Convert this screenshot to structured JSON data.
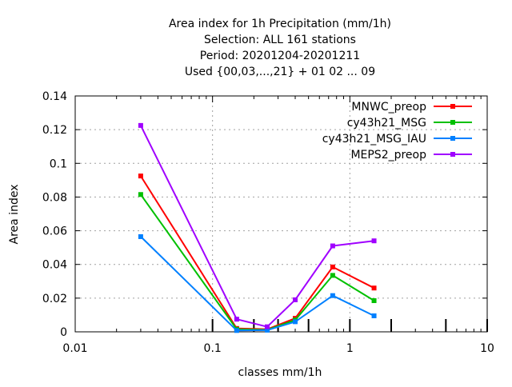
{
  "chart_data": {
    "type": "line",
    "title_lines": [
      "Area index  for 1h Precipitation (mm/1h)",
      "Selection: ALL    161 stations",
      "Period: 20201204-20201211",
      "Used {00,03,...,21} + 01 02 ... 09"
    ],
    "xlabel": "classes mm/1h",
    "ylabel": "Area index",
    "x_scale": "log",
    "xlim": [
      0.01,
      10
    ],
    "ylim": [
      0,
      0.14
    ],
    "x_ticks": [
      {
        "value": 0.01,
        "label": "0.01"
      },
      {
        "value": 0.1,
        "label": "0.1"
      },
      {
        "value": 1,
        "label": "1"
      },
      {
        "value": 10,
        "label": "10"
      }
    ],
    "y_ticks": [
      {
        "value": 0,
        "label": "0"
      },
      {
        "value": 0.02,
        "label": "0.02"
      },
      {
        "value": 0.04,
        "label": "0.04"
      },
      {
        "value": 0.06,
        "label": "0.06"
      },
      {
        "value": 0.08,
        "label": "0.08"
      },
      {
        "value": 0.1,
        "label": "0.1"
      },
      {
        "value": 0.12,
        "label": "0.12"
      },
      {
        "value": 0.14,
        "label": "0.14"
      }
    ],
    "class_markers": [
      0.1,
      0.2,
      0.3,
      0.5,
      1,
      2,
      5,
      10
    ],
    "grid": true,
    "legend_position": "top-right",
    "x": [
      0.03,
      0.15,
      0.25,
      0.4,
      0.75,
      1.5
    ],
    "series": [
      {
        "name": "MNWC_preop",
        "color": "#ff0000",
        "values": [
          0.0925,
          0.002,
          0.0015,
          0.008,
          0.0385,
          0.026
        ]
      },
      {
        "name": "cy43h21_MSG",
        "color": "#00c000",
        "values": [
          0.0815,
          0.0015,
          0.0012,
          0.007,
          0.0335,
          0.0185
        ]
      },
      {
        "name": "cy43h21_MSG_IAU",
        "color": "#0080ff",
        "values": [
          0.0565,
          0.0008,
          0.001,
          0.006,
          0.0215,
          0.0095
        ]
      },
      {
        "name": "MEPS2_preop",
        "color": "#a000ff",
        "values": [
          0.1225,
          0.0075,
          0.003,
          0.019,
          0.051,
          0.054
        ]
      }
    ]
  }
}
